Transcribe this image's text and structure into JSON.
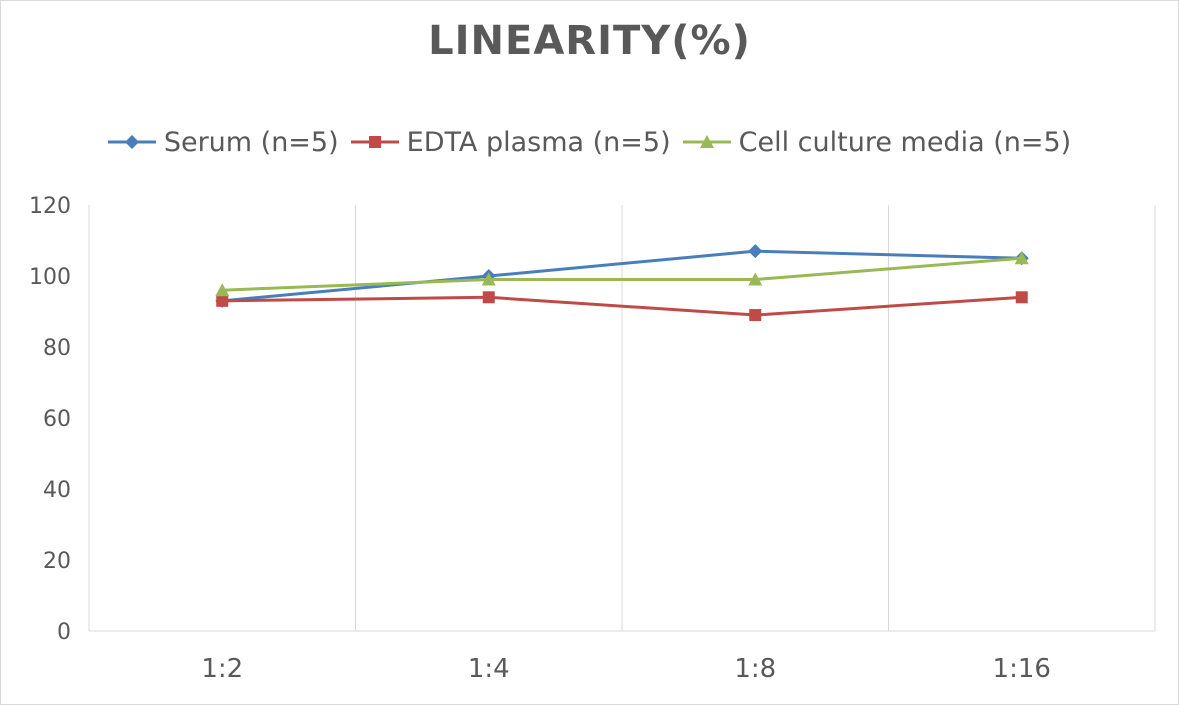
{
  "chart_data": {
    "type": "line",
    "title": "LINEARITY(%)",
    "categories": [
      "1:2",
      "1:4",
      "1:8",
      "1:16"
    ],
    "ylim": [
      0,
      120
    ],
    "yticks": [
      0,
      20,
      40,
      60,
      80,
      100,
      120
    ],
    "grid": "vertical",
    "legend_position": "top",
    "series": [
      {
        "name": "Serum (n=5)",
        "values": [
          93,
          100,
          107,
          105
        ],
        "color": "#4a7ebb",
        "marker": "diamond"
      },
      {
        "name": "EDTA plasma (n=5)",
        "values": [
          93,
          94,
          89,
          94
        ],
        "color": "#be4b48",
        "marker": "square"
      },
      {
        "name": "Cell culture media (n=5)",
        "values": [
          96,
          99,
          99,
          105
        ],
        "color": "#98b954",
        "marker": "triangle"
      }
    ]
  }
}
